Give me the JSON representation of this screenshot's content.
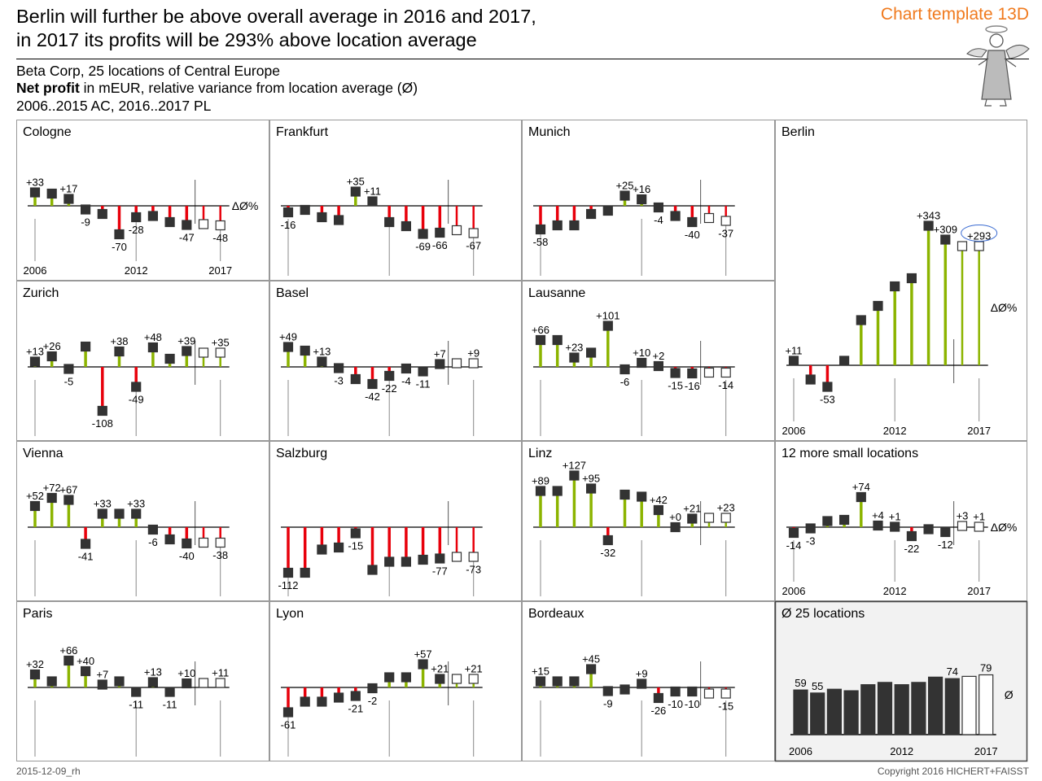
{
  "header": {
    "title_line1": "Berlin will further be above overall average in 2016 and 2017,",
    "title_line2": "in 2017 its profits will be 293% above location average",
    "template_label": "Chart template 13D",
    "subtitle_line1": "Beta Corp, 25 locations of Central Europe",
    "subtitle_bold": "Net profit",
    "subtitle_rest": " in mEUR, relative variance from location average (Ø)",
    "subtitle_line3": "2006..2015 AC, 2016..2017 PL"
  },
  "footer": {
    "date": "2015-12-09_rh",
    "copyright": "Copyright 2016 HICHERT+FAISST"
  },
  "colors": {
    "positive": "#8cb400",
    "negative": "#e8000b",
    "marker": "#333333",
    "highlight_ellipse": "#3a6bd1",
    "average_panel_bg": "#f2f2f2"
  },
  "chart_data": [
    {
      "type": "bar",
      "name": "Cologne",
      "ylabel": "ΔØ%",
      "x": [
        2006,
        2007,
        2008,
        2009,
        2010,
        2011,
        2012,
        2013,
        2014,
        2015,
        2016,
        2017
      ],
      "values": [
        33,
        30,
        17,
        -9,
        -20,
        -70,
        -28,
        -25,
        -40,
        -47,
        -45,
        -48
      ],
      "plan_from": 2016,
      "labels": {
        "0": "+33",
        "2": "+17",
        "3": "-9",
        "5": "-70",
        "6": "-28",
        "9": "-47",
        "11": "-48"
      },
      "x_tick_labels": [
        "2006",
        "2012",
        "2017"
      ]
    },
    {
      "type": "bar",
      "name": "Frankfurt",
      "x": [
        2006,
        2007,
        2008,
        2009,
        2010,
        2011,
        2012,
        2013,
        2014,
        2015,
        2016,
        2017
      ],
      "values": [
        -16,
        -10,
        -28,
        -35,
        35,
        11,
        -40,
        -50,
        -69,
        -66,
        -60,
        -67
      ],
      "plan_from": 2016,
      "labels": {
        "0": "-16",
        "4": "+35",
        "5": "+11",
        "8": "-69",
        "9": "-66",
        "11": "-67"
      }
    },
    {
      "type": "bar",
      "name": "Munich",
      "x": [
        2006,
        2007,
        2008,
        2009,
        2010,
        2011,
        2012,
        2013,
        2014,
        2015,
        2016,
        2017
      ],
      "values": [
        -58,
        -48,
        -48,
        -20,
        -12,
        25,
        16,
        -4,
        -25,
        -40,
        -30,
        -37
      ],
      "plan_from": 2016,
      "labels": {
        "0": "-58",
        "5": "+25",
        "6": "+16",
        "7": "-4",
        "9": "-40",
        "11": "-37"
      }
    },
    {
      "type": "bar",
      "name": "Berlin",
      "ylabel": "ΔØ%",
      "x": [
        2006,
        2007,
        2008,
        2009,
        2010,
        2011,
        2012,
        2013,
        2014,
        2015,
        2016,
        2017
      ],
      "values": [
        11,
        -35,
        -53,
        11,
        111,
        146,
        194,
        214,
        343,
        309,
        293,
        293
      ],
      "plan_from": 2016,
      "labels": {
        "0": "+11",
        "2": "-53",
        "8": "+343",
        "9": "+309",
        "11": "+293"
      },
      "x_tick_labels": [
        "2006",
        "2012",
        "2017"
      ],
      "highlight": 11
    },
    {
      "type": "bar",
      "name": "Zurich",
      "x": [
        2006,
        2007,
        2008,
        2009,
        2010,
        2011,
        2012,
        2013,
        2014,
        2015,
        2016,
        2017
      ],
      "values": [
        13,
        26,
        -5,
        50,
        -108,
        38,
        -49,
        48,
        20,
        39,
        35,
        35
      ],
      "plan_from": 2016,
      "labels": {
        "0": "+13",
        "1": "+26",
        "2": "-5",
        "4": "-108",
        "5": "+38",
        "6": "-49",
        "7": "+48",
        "9": "+39",
        "11": "+35"
      }
    },
    {
      "type": "bar",
      "name": "Basel",
      "x": [
        2006,
        2007,
        2008,
        2009,
        2010,
        2011,
        2012,
        2013,
        2014,
        2015,
        2016,
        2017
      ],
      "values": [
        49,
        40,
        13,
        -3,
        -30,
        -42,
        -22,
        -4,
        -11,
        7,
        9,
        9
      ],
      "plan_from": 2016,
      "labels": {
        "0": "+49",
        "2": "+13",
        "3": "-3",
        "5": "-42",
        "6": "-22",
        "7": "-4",
        "8": "-11",
        "9": "+7",
        "11": "+9"
      }
    },
    {
      "type": "bar",
      "name": "Lausanne",
      "x": [
        2006,
        2007,
        2008,
        2009,
        2010,
        2011,
        2012,
        2013,
        2014,
        2015,
        2016,
        2017
      ],
      "values": [
        66,
        66,
        23,
        35,
        101,
        -6,
        10,
        2,
        -15,
        -16,
        -14,
        -14
      ],
      "plan_from": 2016,
      "labels": {
        "0": "+66",
        "2": "+23",
        "4": "+101",
        "5": "-6",
        "6": "+10",
        "7": "+2",
        "8": "-15",
        "9": "-16",
        "11": "-14"
      }
    },
    {
      "type": "bar",
      "name": "Vienna",
      "x": [
        2006,
        2007,
        2008,
        2009,
        2010,
        2011,
        2012,
        2013,
        2014,
        2015,
        2016,
        2017
      ],
      "values": [
        52,
        72,
        67,
        -41,
        33,
        33,
        33,
        -6,
        -30,
        -40,
        -38,
        -38
      ],
      "plan_from": 2016,
      "labels": {
        "0": "+52",
        "1": "+72",
        "2": "+67",
        "3": "-41",
        "4": "+33",
        "6": "+33",
        "7": "-6",
        "9": "-40",
        "11": "-38"
      }
    },
    {
      "type": "bar",
      "name": "Salzburg",
      "x": [
        2006,
        2007,
        2008,
        2009,
        2010,
        2011,
        2012,
        2013,
        2014,
        2015,
        2016,
        2017
      ],
      "values": [
        -112,
        -112,
        -55,
        -50,
        -15,
        -105,
        -85,
        -85,
        -80,
        -77,
        -73,
        -73
      ],
      "plan_from": 2016,
      "labels": {
        "0": "-112",
        "4": "-15",
        "9": "-77",
        "11": "-73"
      }
    },
    {
      "type": "bar",
      "name": "Linz",
      "x": [
        2006,
        2007,
        2008,
        2009,
        2010,
        2011,
        2012,
        2013,
        2014,
        2015,
        2016,
        2017
      ],
      "values": [
        89,
        89,
        127,
        95,
        -32,
        80,
        75,
        42,
        0,
        21,
        23,
        23
      ],
      "plan_from": 2016,
      "labels": {
        "0": "+89",
        "2": "+127",
        "3": "+95",
        "4": "-32",
        "7": "+42",
        "8": "+0",
        "9": "+21",
        "11": "+23"
      }
    },
    {
      "type": "bar",
      "name": "12 more small locations",
      "ylabel": "ΔØ%",
      "x": [
        2006,
        2007,
        2008,
        2009,
        2010,
        2011,
        2012,
        2013,
        2014,
        2015,
        2016,
        2017
      ],
      "values": [
        -14,
        -3,
        15,
        18,
        74,
        4,
        1,
        -22,
        -5,
        -12,
        3,
        1
      ],
      "plan_from": 2016,
      "labels": {
        "0": "-14",
        "1": "-3",
        "4": "+74",
        "5": "+4",
        "6": "+1",
        "7": "-22",
        "9": "-12",
        "10": "+3",
        "11": "+1"
      },
      "x_tick_labels": [
        "2006",
        "2012",
        "2017"
      ]
    },
    {
      "type": "bar",
      "name": "Paris",
      "x": [
        2006,
        2007,
        2008,
        2009,
        2010,
        2011,
        2012,
        2013,
        2014,
        2015,
        2016,
        2017
      ],
      "values": [
        32,
        15,
        66,
        40,
        7,
        15,
        -11,
        13,
        -11,
        10,
        11,
        11
      ],
      "plan_from": 2016,
      "labels": {
        "0": "+32",
        "2": "+66",
        "3": "+40",
        "4": "+7",
        "6": "-11",
        "7": "+13",
        "8": "-11",
        "9": "+10",
        "11": "+11"
      }
    },
    {
      "type": "bar",
      "name": "Lyon",
      "x": [
        2006,
        2007,
        2008,
        2009,
        2010,
        2011,
        2012,
        2013,
        2014,
        2015,
        2016,
        2017
      ],
      "values": [
        -61,
        -35,
        -35,
        -25,
        -21,
        -2,
        25,
        25,
        57,
        21,
        21,
        21
      ],
      "plan_from": 2016,
      "labels": {
        "0": "-61",
        "4": "-21",
        "5": "-2",
        "8": "+57",
        "9": "+21",
        "11": "+21"
      }
    },
    {
      "type": "bar",
      "name": "Bordeaux",
      "x": [
        2006,
        2007,
        2008,
        2009,
        2010,
        2011,
        2012,
        2013,
        2014,
        2015,
        2016,
        2017
      ],
      "values": [
        15,
        15,
        15,
        45,
        -9,
        -5,
        9,
        -26,
        -10,
        -10,
        -15,
        -15
      ],
      "plan_from": 2016,
      "labels": {
        "0": "+15",
        "3": "+45",
        "4": "-9",
        "6": "+9",
        "7": "-26",
        "8": "-10",
        "9": "-10",
        "11": "-15"
      }
    },
    {
      "type": "bar",
      "name": "Ø 25 locations",
      "ylabel": "Ø",
      "x": [
        2006,
        2007,
        2008,
        2009,
        2010,
        2011,
        2012,
        2013,
        2014,
        2015,
        2016,
        2017
      ],
      "values": [
        59,
        55,
        60,
        58,
        66,
        69,
        66,
        69,
        76,
        74,
        77,
        79
      ],
      "plan_from": 2016,
      "labels": {
        "0": "59",
        "1": "55",
        "9": "74",
        "11": "79"
      },
      "x_tick_labels": [
        "2006",
        "2012",
        "2017"
      ],
      "absolute": true
    }
  ]
}
